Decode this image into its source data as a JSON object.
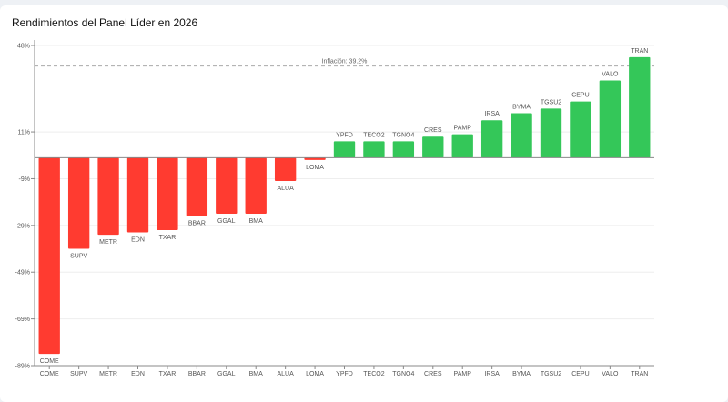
{
  "chart_data": {
    "type": "bar",
    "title": "Rendimientos del Panel Líder en 2026",
    "xlabel": "",
    "ylabel": "",
    "categories": [
      "COME",
      "SUPV",
      "METR",
      "EDN",
      "TXAR",
      "BBAR",
      "GGAL",
      "BMA",
      "ALUA",
      "LOMA",
      "YPFD",
      "TECO2",
      "TGNO4",
      "CRES",
      "PAMP",
      "IRSA",
      "BYMA",
      "TGSU2",
      "CEPU",
      "VALO",
      "TRAN"
    ],
    "values": [
      -84,
      -39,
      -33,
      -32,
      -31,
      -25,
      -24,
      -24,
      -10,
      -1,
      7,
      7,
      7,
      9,
      10,
      16,
      19,
      21,
      24,
      33,
      43
    ],
    "ylim": [
      -89,
      48
    ],
    "yticks": [
      -89,
      -69,
      -49,
      -29,
      -9,
      11,
      48
    ],
    "ytick_labels": [
      "-89%",
      "-69%",
      "-49%",
      "-29%",
      "-9%",
      "11%",
      "48%"
    ],
    "reference_line": {
      "value": 39.2,
      "label": "Inflación: 39.2%"
    },
    "negative_color": "#ff3b30",
    "positive_color": "#34c759",
    "grid": true,
    "legend": "none"
  }
}
